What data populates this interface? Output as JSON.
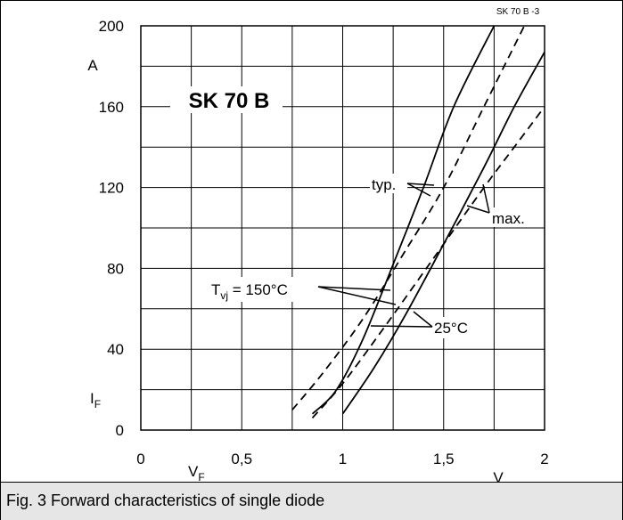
{
  "chart_data": {
    "type": "line",
    "title": "SK 70 B",
    "figure_id": "SK 70 B -3",
    "xlabel": "V",
    "xlabel_symbol": "F",
    "x_unit": "V",
    "ylabel": "I",
    "ylabel_symbol": "F",
    "y_unit": "A",
    "xlim": [
      0,
      2
    ],
    "ylim": [
      0,
      200
    ],
    "x_ticks": [
      0,
      0.5,
      1,
      1.5,
      2
    ],
    "x_tick_labels": [
      "0",
      "0,5",
      "1",
      "1,5",
      "2"
    ],
    "y_ticks": [
      0,
      40,
      80,
      120,
      160,
      200
    ],
    "y_tick_labels": [
      "0",
      "40",
      "80",
      "120",
      "160",
      "200"
    ],
    "grid": true,
    "series": [
      {
        "style": "solid",
        "x": [
          0.85,
          0.97,
          1.1,
          1.25,
          1.4,
          1.55,
          1.75
        ],
        "y": [
          8,
          20,
          45,
          82,
          120,
          160,
          200
        ]
      },
      {
        "style": "solid",
        "x": [
          1.0,
          1.15,
          1.3,
          1.5,
          1.7,
          1.85,
          2.0
        ],
        "y": [
          8,
          30,
          55,
          92,
          130,
          160,
          187
        ]
      },
      {
        "style": "dashed",
        "x": [
          0.75,
          0.9,
          1.1,
          1.3,
          1.5,
          1.7,
          1.9
        ],
        "y": [
          10,
          28,
          55,
          87,
          120,
          160,
          200
        ]
      },
      {
        "style": "dashed",
        "x": [
          0.85,
          1.0,
          1.2,
          1.45,
          1.7,
          1.85,
          2.0
        ],
        "y": [
          6,
          23,
          50,
          85,
          120,
          140,
          160
        ]
      }
    ],
    "annotations": {
      "typ": "typ.",
      "max": "max.",
      "tvj_prefix": "T",
      "tvj_sub": "vj",
      "tvj_suffix": " = 150°C",
      "t25": "25°C"
    }
  },
  "caption": "Fig. 3 Forward characteristics of single diode"
}
